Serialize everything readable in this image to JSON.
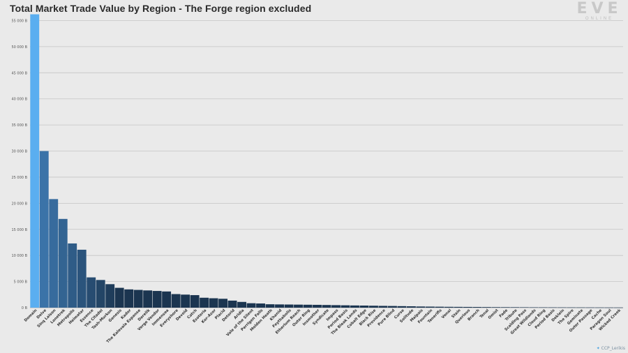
{
  "title": "Total Market Trade Value by Region - The Forge region excluded",
  "logo": {
    "main": "EVE",
    "sub": "ONLINE"
  },
  "credit": "CCP_Lerikis",
  "colors": {
    "highlight": "#5aaef0",
    "dark": "#1b3550",
    "mid": "#3b73a8",
    "grid": "#c4c4c4"
  },
  "chart_data": {
    "type": "bar",
    "title": "Total Market Trade Value by Region - The Forge region excluded",
    "xlabel": "",
    "ylabel": "",
    "ylim": [
      0,
      56000
    ],
    "y_ticks": [
      0,
      5000,
      10000,
      15000,
      20000,
      25000,
      30000,
      35000,
      40000,
      45000,
      50000,
      55000
    ],
    "y_tick_labels": [
      "0 B",
      "5 000 B",
      "10 000 B",
      "15 000 B",
      "20 000 B",
      "25 000 B",
      "30 000 B",
      "35 000 B",
      "40 000 B",
      "45 000 B",
      "50 000 B",
      "55 000 B"
    ],
    "grid": true,
    "categories": [
      "Domain",
      "Delve",
      "Sinq Laison",
      "Lonetrek",
      "Metropolis",
      "Heimatar",
      "Essence",
      "The Citadel",
      "Tash-Murkon",
      "Genesis",
      "Kador",
      "The Kalevala Expanse",
      "Derelik",
      "Verge Vendor",
      "Immensea",
      "Everyshore",
      "Devoid",
      "Catch",
      "Esoteria",
      "Kor-Azor",
      "Placid",
      "Detorid",
      "Aridia",
      "Vale of the Silent",
      "Perrigen Falls",
      "Molden Heath",
      "Khanid",
      "Feythabolis",
      "Etherium Reach",
      "Outer Ring",
      "Insmother",
      "Syndicate",
      "Impass",
      "Period Basis",
      "The Bleak Lands",
      "Cobalt Edge",
      "Black Rise",
      "Providence",
      "Pure Blind",
      "Curse",
      "Solitude",
      "Malpais",
      "Fountain",
      "Tenerifis",
      "Venal",
      "Stain",
      "Querious",
      "Branch",
      "Tenal",
      "Omist",
      "Fade",
      "Tribute",
      "Scalding Pass",
      "Great Wildlands",
      "Cloud Ring",
      "Period Basis",
      "Deklein",
      "The Spire",
      "Geminate",
      "Outer Passage",
      "Cache",
      "Paragon Soul",
      "Wicked Creek"
    ],
    "values": [
      56200,
      30000,
      20800,
      17000,
      12300,
      11100,
      5800,
      5300,
      4500,
      3800,
      3500,
      3400,
      3300,
      3200,
      3100,
      2600,
      2500,
      2400,
      1900,
      1800,
      1700,
      1350,
      1100,
      850,
      800,
      650,
      620,
      600,
      580,
      560,
      540,
      510,
      480,
      450,
      420,
      400,
      370,
      340,
      320,
      290,
      260,
      220,
      200,
      180,
      160,
      150,
      140,
      130,
      115,
      100,
      95,
      90,
      80,
      70,
      65,
      60,
      55,
      50,
      45,
      40,
      35,
      30,
      25
    ]
  }
}
